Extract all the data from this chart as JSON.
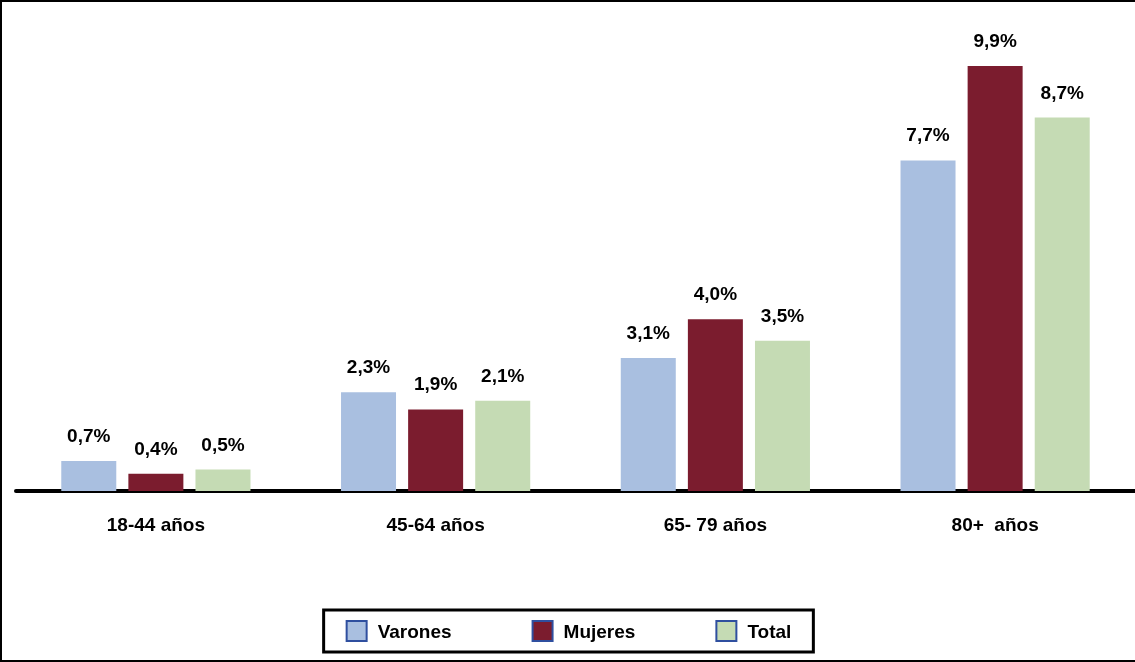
{
  "chart_data": {
    "type": "bar",
    "categories": [
      "18-44 años",
      "45-64 años",
      "65- 79 años",
      "80+  años"
    ],
    "series": [
      {
        "name": "Varones",
        "color": "#a9bfe0",
        "values": [
          0.7,
          2.3,
          3.1,
          7.7
        ],
        "value_labels": [
          "0,7%",
          "2,3%",
          "3,1%",
          "7,7%"
        ]
      },
      {
        "name": "Mujeres",
        "color": "#7b1c2e",
        "values": [
          0.4,
          1.9,
          4.0,
          9.9
        ],
        "value_labels": [
          "0,4%",
          "1,9%",
          "4,0%",
          "9,9%"
        ]
      },
      {
        "name": "Total",
        "color": "#c5dbb4",
        "values": [
          0.5,
          2.1,
          3.5,
          8.7
        ],
        "value_labels": [
          "0,5%",
          "2,1%",
          "3,5%",
          "8,7%"
        ]
      }
    ],
    "tick_labels": "x",
    "legend": "bottom"
  }
}
